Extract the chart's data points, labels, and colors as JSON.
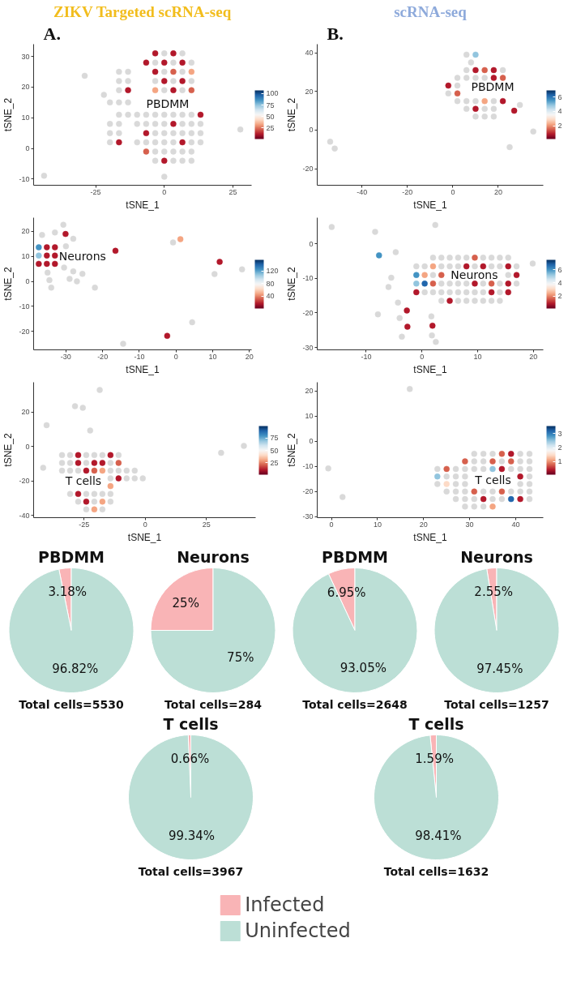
{
  "chart_data": [
    {
      "type": "scatter",
      "title": "ZIKV Targeted scRNA-seq",
      "subtitle": "A.",
      "xlabel": "tSNE_1",
      "ylabel": "tSNE_2",
      "xlim": [
        -47.6,
        31.8
      ],
      "ylim": [
        -12,
        34
      ],
      "xticks": [
        -25,
        0,
        25
      ],
      "yticks": [
        -10,
        0,
        10,
        20,
        30
      ],
      "clim": [
        1,
        107
      ],
      "cticks": [
        25,
        50,
        75,
        100
      ],
      "marker": "circle",
      "annotations": [
        "PBDMM"
      ],
      "series": [
        {
          "color": "#d9d9d9",
          "x": [
            0,
            6.6,
            -3.3,
            3.3,
            9.9,
            -16.5,
            -13.2,
            0,
            6.6,
            -16.5,
            -13.2,
            -3.3,
            3.3,
            9.9,
            -16.5,
            0,
            6.6,
            -19.8,
            -16.5,
            -13.2,
            -22,
            -16.5,
            -13.2,
            -9.9,
            -6.6,
            -3.3,
            0,
            3.3,
            6.6,
            9.9,
            -19.8,
            -16.5,
            -9.9,
            -6.6,
            -3.3,
            0,
            6.6,
            9.9,
            13.2,
            -19.8,
            -16.5,
            -3.3,
            0,
            3.3,
            6.6,
            9.9,
            13.2,
            -19.8,
            -9.9,
            -6.6,
            -3.3,
            0,
            3.3,
            9.9,
            13.2,
            -3.3,
            0,
            3.3,
            6.6,
            9.9,
            -3.3,
            3.3,
            6.6,
            9.9,
            -29,
            27.7,
            -43.8,
            0
          ],
          "values": [
            31,
            31,
            28,
            28,
            28,
            25,
            25,
            25,
            25,
            22,
            22,
            22,
            22,
            22,
            19,
            19,
            19,
            15,
            15,
            15,
            17.5,
            11,
            11,
            11,
            11,
            11,
            11,
            11,
            11,
            11,
            8,
            8,
            8,
            8,
            8,
            8,
            8,
            8,
            8,
            5,
            5,
            5,
            5,
            5,
            5,
            5,
            5,
            2,
            2,
            2,
            2,
            2,
            2,
            2,
            2,
            -1,
            -1,
            -1,
            -1,
            -1,
            -4,
            -4,
            -4,
            -4,
            23.7,
            6.2,
            -8.9,
            -9.2
          ]
        },
        {
          "colors": [
            "#b2182b",
            "#b2182b",
            "#b2182b",
            "#b2182b",
            "#b2182b",
            "#d6604d",
            "#f4a582",
            "#b2182b",
            "#b2182b",
            "#f4a582",
            "#b2182b",
            "#d6604d",
            "#b2182b",
            "#b2182b",
            "#b2182b",
            "#b2182b",
            "#b2182b",
            "#b2182b",
            "#b2182b",
            "#b2182b",
            "#d6604d"
          ],
          "x": [
            -3.3,
            3.3,
            0,
            6.6,
            -3.3,
            3.3,
            9.9,
            0,
            6.6,
            -3.3,
            3.3,
            9.9,
            -6.6,
            -13.2,
            -6.6,
            13.2,
            3.3,
            6.6,
            0,
            -16.5,
            -6.6
          ],
          "values": [
            31,
            31,
            28,
            28,
            25,
            25,
            25,
            22,
            22,
            19,
            19,
            19,
            28,
            19,
            5,
            11,
            8,
            2,
            -4,
            2,
            -1
          ]
        }
      ]
    },
    {
      "type": "scatter",
      "title": "scRNA-seq",
      "subtitle": "B.",
      "xlabel": "tSNE_1",
      "ylabel": "tSNE_2",
      "xlim": [
        -59.7,
        39.8
      ],
      "ylim": [
        -28.5,
        44.4
      ],
      "xticks": [
        -40,
        -20,
        0,
        20
      ],
      "yticks": [
        -20,
        0,
        20,
        40
      ],
      "clim": [
        0.2,
        6.9
      ],
      "cticks": [
        2,
        4,
        6
      ],
      "marker": "circle",
      "annotations": [
        "PBDMM"
      ],
      "series": [
        {
          "color": "#d9d9d9",
          "x": [
            6,
            22,
            2,
            6,
            10,
            14,
            2,
            -2,
            2,
            6,
            10,
            18,
            6,
            14,
            18,
            10,
            14,
            18,
            6,
            8,
            -54,
            -52,
            35.4,
            25,
            29.5
          ],
          "values": [
            31,
            31,
            27,
            27,
            27,
            27,
            23,
            19,
            15,
            15,
            15,
            15,
            11,
            11,
            11,
            7,
            7,
            7,
            39,
            35,
            -6,
            -9.5,
            -0.7,
            -8.8,
            13
          ]
        },
        {
          "colors": [
            "#b2182b",
            "#d6604d",
            "#b2182b",
            "#d6604d",
            "#b2182b",
            "#b2182b",
            "#d6604d",
            "#b2182b",
            "#f4a582",
            "#b2182b",
            "#92c5de",
            "#b2182b"
          ],
          "x": [
            10,
            14,
            18,
            22,
            18,
            -2,
            2,
            22,
            14,
            10,
            10,
            27
          ],
          "values": [
            31,
            31,
            31,
            27,
            27,
            23,
            19,
            15,
            15,
            11,
            39,
            10
          ]
        }
      ]
    },
    {
      "type": "scatter",
      "xlabel": "tSNE_1",
      "ylabel": "tSNE_2",
      "xlim": [
        -38.8,
        20.6
      ],
      "ylim": [
        -27.3,
        25.4
      ],
      "xticks": [
        -30,
        -20,
        -10,
        0,
        10,
        20
      ],
      "yticks": [
        -20,
        -10,
        0,
        10,
        20
      ],
      "clim": [
        1,
        156
      ],
      "cticks": [
        40,
        80,
        120
      ],
      "marker": "circle",
      "annotations": [
        "Neurons"
      ],
      "series": [
        {
          "color": "#d9d9d9",
          "x": [
            -36.5,
            -33,
            -28,
            -30.7,
            -30,
            -30.5,
            -28,
            -25.5,
            -35,
            -34.5,
            -34,
            -29,
            -27,
            -22.1,
            -0.8,
            10.5,
            18,
            4.4,
            -14.4
          ],
          "values": [
            18.5,
            19.5,
            17,
            22.6,
            14,
            5.5,
            4,
            3,
            3.5,
            0.5,
            -2.5,
            1,
            0,
            -2.5,
            15.5,
            2.9,
            4.8,
            -16.3,
            -24.9
          ]
        },
        {
          "colors": [
            "#4393c3",
            "#b2182b",
            "#b2182b",
            "#92c5de",
            "#b2182b",
            "#b2182b",
            "#b2182b",
            "#b2182b",
            "#b2182b",
            "#b2182b",
            "#b2182b",
            "#f4a582",
            "#b2182b",
            "#b2182b"
          ],
          "x": [
            -37.4,
            -35.2,
            -33,
            -37.4,
            -35.2,
            -33,
            -37.4,
            -35.2,
            -33,
            -30.1,
            -16.5,
            1.2,
            11.9,
            -2.4
          ],
          "values": [
            13.6,
            13.6,
            13.6,
            10.3,
            10.3,
            10.3,
            7,
            7,
            7,
            18.9,
            12.2,
            16.8,
            7.8,
            -21.7
          ]
        }
      ]
    },
    {
      "type": "scatter",
      "xlabel": "tSNE_1",
      "ylabel": "tSNE_2",
      "xlim": [
        -18.8,
        21.8
      ],
      "ylim": [
        -30.7,
        7.6
      ],
      "xticks": [
        -10,
        0,
        10,
        20
      ],
      "yticks": [
        -30,
        -20,
        -10,
        0
      ],
      "clim": [
        0.1,
        7.5
      ],
      "cticks": [
        2,
        4,
        6
      ],
      "marker": "circle",
      "annotations": [
        "Neurons"
      ],
      "series": [
        {
          "color": "#d9d9d9",
          "x": [
            2,
            3.5,
            5,
            6.5,
            8,
            11,
            12.5,
            14,
            15.5,
            -1,
            0.5,
            3.5,
            5,
            6.5,
            9.5,
            12.5,
            14,
            17,
            2,
            15.5,
            3.5,
            5,
            6.5,
            8,
            11,
            14,
            17,
            0.5,
            2,
            3.5,
            5,
            6.5,
            8,
            9.5,
            11,
            14,
            3.5,
            6.5,
            8,
            9.5,
            11,
            12.5,
            14,
            -4.3,
            -4,
            -3.6,
            1.7,
            2.5,
            1.8,
            -7.9,
            -16.2,
            -8.4,
            2.4,
            -4.7,
            19.9,
            -5.5,
            -6
          ],
          "values": [
            -4,
            -4,
            -4,
            -4,
            -4,
            -4,
            -4,
            -4,
            -4,
            -6.5,
            -6.5,
            -6.5,
            -6.5,
            -6.5,
            -6.5,
            -6.5,
            -6.5,
            -6.5,
            -9,
            -9,
            -11.5,
            -11.5,
            -11.5,
            -11.5,
            -11.5,
            -11.5,
            -11.5,
            -14,
            -14,
            -14,
            -14,
            -14,
            -14,
            -14,
            -14,
            -14,
            -16.5,
            -16.5,
            -16.5,
            -16.5,
            -16.5,
            -16.5,
            -16.5,
            -17,
            -21.5,
            -26.9,
            -21,
            -28.4,
            -26.5,
            -20.4,
            4.9,
            3.5,
            5.5,
            -2.4,
            -5.7,
            -9.8,
            -12.5
          ]
        },
        {
          "colors": [
            "#b2182b",
            "#d6604d",
            "#b2182b",
            "#b2182b",
            "#b2182b",
            "#b2182b",
            "#d6604d",
            "#b2182b",
            "#b2182b",
            "#b2182b",
            "#b2182b",
            "#b2182b",
            "#d6604d",
            "#d6604d",
            "#f4a582",
            "#f4a582",
            "#4393c3",
            "#2166ac",
            "#92c5de",
            "#b2182b",
            "#b2182b",
            "#b2182b",
            "#4393c3"
          ],
          "x": [
            8,
            9.5,
            11,
            15.5,
            17,
            15.5,
            12.5,
            9.5,
            12.5,
            15.5,
            5,
            -1,
            3.5,
            2,
            0.5,
            2,
            -1,
            0.5,
            -1,
            -2.7,
            -2.6,
            1.9,
            -7.7
          ],
          "values": [
            -6.5,
            -4,
            -6.5,
            -6.5,
            -9,
            -11.5,
            -11.5,
            -11.5,
            -14,
            -14,
            -16.5,
            -14,
            -9,
            -11.5,
            -9,
            -6.5,
            -9,
            -11.5,
            -11.5,
            -19.3,
            -24,
            -23.7,
            -3.3
          ]
        }
      ]
    },
    {
      "type": "scatter",
      "xlabel": "tSNE_1",
      "ylabel": "tSNE_2",
      "xlim": [
        -45.6,
        45.1
      ],
      "ylim": [
        -41.3,
        37.3
      ],
      "xticks": [
        -25,
        0,
        25
      ],
      "yticks": [
        -40,
        -20,
        0,
        20
      ],
      "clim": [
        1,
        99
      ],
      "cticks": [
        25,
        50,
        75
      ],
      "marker": "circle",
      "annotations": [
        "T cells"
      ],
      "series": [
        {
          "color": "#d9d9d9",
          "x": [
            -34,
            -30.7,
            -24.1,
            -20.8,
            -17.5,
            -10.9,
            -34,
            -30.7,
            -24.1,
            -14.2,
            -34,
            -30.7,
            -27.4,
            -14.2,
            -10.9,
            -7.6,
            -4.3,
            -14.2,
            -7.6,
            -4.3,
            -1,
            -30.7,
            -24.1,
            -20.8,
            -17.5,
            -14.2,
            -27.4,
            -20.8,
            -14.2,
            -24.1,
            -17.5,
            -18.6,
            -28.7,
            -25.5,
            -40.3,
            -22.5,
            40.3,
            31,
            -41.7
          ],
          "values": [
            -5,
            -5,
            -5,
            -5,
            -5,
            -5,
            -9.5,
            -9.5,
            -9.5,
            -9.5,
            -14,
            -14,
            -14,
            -14,
            -14,
            -14,
            -14,
            -18.5,
            -18.5,
            -18.5,
            -18.5,
            -27.5,
            -27.5,
            -27.5,
            -27.5,
            -27.5,
            -32,
            -32,
            -32,
            -36.5,
            -36.5,
            32.8,
            23.4,
            22.5,
            12.4,
            9.3,
            0.4,
            -3.7,
            -12.3
          ]
        },
        {
          "colors": [
            "#b2182b",
            "#b2182b",
            "#b2182b",
            "#b2182b",
            "#b2182b",
            "#d6604d",
            "#f4a582",
            "#d6604d",
            "#b2182b",
            "#b2182b",
            "#f4a582",
            "#b2182b",
            "#f4a582",
            "#f4a582",
            "#b2182b"
          ],
          "x": [
            -27.4,
            -27.4,
            -20.8,
            -14.2,
            -17.5,
            -10.9,
            -17.5,
            -20.8,
            -24.1,
            -10.9,
            -14.2,
            -27.4,
            -20.8,
            -17.5,
            -24.1
          ],
          "values": [
            -5,
            -9.5,
            -9.5,
            -5,
            -9.5,
            -9.5,
            -14,
            -14,
            -14,
            -18.5,
            -23,
            -27.5,
            -36.5,
            -32,
            -32
          ]
        }
      ]
    },
    {
      "type": "scatter",
      "xlabel": "tSNE_1",
      "ylabel": "tSNE_2",
      "xlim": [
        -3.1,
        46
      ],
      "ylim": [
        -30.4,
        23.5
      ],
      "xticks": [
        0,
        10,
        20,
        30,
        40
      ],
      "yticks": [
        -30,
        -20,
        -10,
        0,
        10,
        20
      ],
      "clim": [
        0.05,
        3.55
      ],
      "cticks": [
        1,
        2,
        3
      ],
      "marker": "circle",
      "annotations": [
        "T cells"
      ],
      "series": [
        {
          "color": "#d9d9d9",
          "x": [
            31,
            33,
            35,
            41,
            43,
            31,
            33,
            37,
            41,
            43,
            23,
            27,
            29,
            31,
            33,
            39,
            41,
            43,
            25,
            27,
            29,
            43,
            23,
            27,
            29,
            41,
            43,
            25,
            27,
            29,
            33,
            35,
            39,
            41,
            43,
            27,
            29,
            31,
            35,
            37,
            43,
            29,
            31,
            33,
            -0.7,
            2.4,
            17
          ],
          "values": [
            -5,
            -5,
            -5,
            -5,
            -5,
            -8,
            -8,
            -8,
            -8,
            -8,
            -11,
            -11,
            -11,
            -11,
            -11,
            -11,
            -11,
            -11,
            -14,
            -14,
            -14,
            -14,
            -17,
            -17,
            -17,
            -17,
            -17,
            -20,
            -20,
            -20,
            -20,
            -20,
            -20,
            -20,
            -20,
            -23,
            -23,
            -23,
            -23,
            -23,
            -23,
            -26,
            -26,
            -26,
            -10.8,
            -22.2,
            20.8
          ]
        },
        {
          "colors": [
            "#d6604d",
            "#b2182b",
            "#d6604d",
            "#d6604d",
            "#b2182b",
            "#92c5de",
            "#b2182b",
            "#d6604d",
            "#d6604d",
            "#92c5de",
            "#fddbc7",
            "#d6604d",
            "#d6604d",
            "#2166ac",
            "#b2182b",
            "#b2182b",
            "#f4a582"
          ],
          "x": [
            37,
            39,
            35,
            39,
            37,
            35,
            41,
            29,
            25,
            23,
            25,
            31,
            37,
            39,
            41,
            33,
            35
          ],
          "values": [
            -5,
            -5,
            -8,
            -8,
            -11,
            -11,
            -14,
            -8,
            -11,
            -14,
            -17,
            -20,
            -20,
            -23,
            -23,
            -23,
            -26
          ]
        }
      ]
    },
    {
      "type": "pie",
      "title": "PBDMM",
      "categories": [
        null,
        null
      ],
      "values": [
        3.18,
        96.82
      ],
      "colors": [
        "#f9b4b6",
        "#bcdfd6"
      ],
      "value_labels": [
        "3.18%",
        "96.82%"
      ],
      "annotations": [
        "Total cells=5530"
      ]
    },
    {
      "type": "pie",
      "title": "Neurons",
      "categories": [
        null,
        null
      ],
      "values": [
        25,
        75
      ],
      "colors": [
        "#f9b4b6",
        "#bcdfd6"
      ],
      "value_labels": [
        "25%",
        "75%"
      ],
      "annotations": [
        "Total cells=284"
      ]
    },
    {
      "type": "pie",
      "title": "PBDMM",
      "categories": [
        null,
        null
      ],
      "values": [
        6.95,
        93.05
      ],
      "colors": [
        "#f9b4b6",
        "#bcdfd6"
      ],
      "value_labels": [
        "6.95%",
        "93.05%"
      ],
      "annotations": [
        "Total cells=2648"
      ]
    },
    {
      "type": "pie",
      "title": "Neurons",
      "categories": [
        null,
        null
      ],
      "values": [
        2.55,
        97.45
      ],
      "colors": [
        "#f9b4b6",
        "#bcdfd6"
      ],
      "value_labels": [
        "2.55%",
        "97.45%"
      ],
      "annotations": [
        "Total cells=1257"
      ]
    },
    {
      "type": "pie",
      "title": "T cells",
      "categories": [
        null,
        null
      ],
      "values": [
        0.66,
        99.34
      ],
      "colors": [
        "#f9b4b6",
        "#bcdfd6"
      ],
      "value_labels": [
        "0.66%",
        "99.34%"
      ],
      "annotations": [
        "Total cells=3967"
      ]
    },
    {
      "type": "pie",
      "title": "T cells",
      "categories": [
        "Infected",
        "Uninfected"
      ],
      "values": [
        1.59,
        98.41
      ],
      "colors": [
        "#f9b4b6",
        "#bcdfd6"
      ],
      "value_labels": [
        "1.59%",
        "98.41%"
      ],
      "annotations": [
        "Total cells=1632"
      ],
      "legend": "bottom"
    }
  ]
}
